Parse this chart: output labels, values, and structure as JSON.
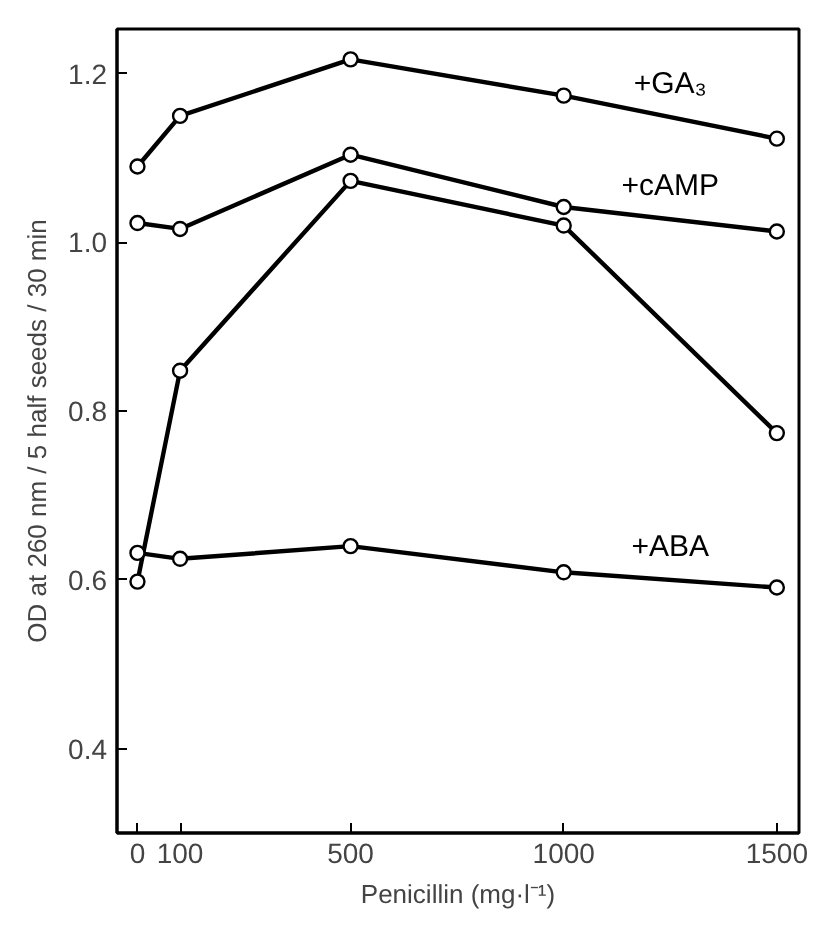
{
  "chart_data": {
    "type": "line",
    "xlabel": "Penicillin (mg·l⁻¹)",
    "ylabel": "OD at 260 nm / 5 half seeds / 30 min",
    "x": [
      0,
      100,
      500,
      1000,
      1500
    ],
    "series": [
      {
        "name": "+GA₃",
        "color": "#000000",
        "values": [
          1.09,
          1.15,
          1.217,
          1.174,
          1.123
        ]
      },
      {
        "name": "+cAMP",
        "color": "#000000",
        "values": [
          1.023,
          1.016,
          1.104,
          1.042,
          1.013
        ]
      },
      {
        "color": "#000000",
        "values": [
          0.598,
          0.848,
          1.073,
          1.02,
          0.774
        ]
      },
      {
        "name": "+ABA",
        "color": "#000000",
        "values": [
          0.632,
          0.625,
          0.64,
          0.609,
          0.591
        ]
      }
    ],
    "xlim": [
      -48,
      1552
    ],
    "ylim": [
      0.3,
      1.253
    ],
    "xticks": [
      0,
      100,
      500,
      1000,
      1500
    ],
    "yticks": [
      0.4,
      0.6,
      0.8,
      {
        "value": 1,
        "label": "1.0"
      },
      1.2
    ],
    "marker": "circle",
    "line_style": "solid"
  }
}
